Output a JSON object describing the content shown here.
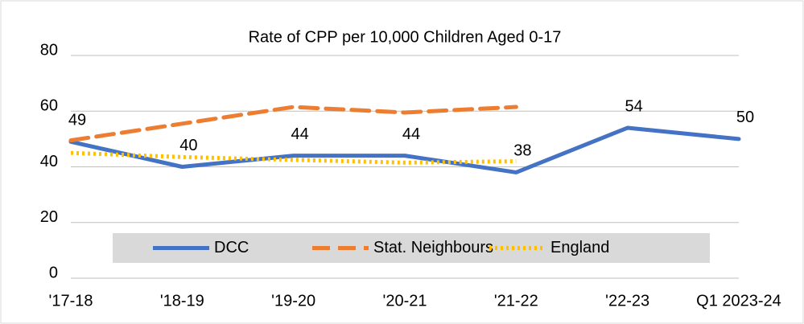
{
  "chart_data": {
    "type": "line",
    "title": "Rate of CPP per 10,000 Children Aged 0-17",
    "categories": [
      "'17-18",
      "'18-19",
      "'19-20",
      "'20-21",
      "'21-22",
      "'22-23",
      "Q1 2023-24"
    ],
    "series": [
      {
        "name": "DCC",
        "color": "#4472c4",
        "style": "solid",
        "values": [
          49,
          40,
          44,
          44,
          38,
          54,
          50
        ],
        "data_labels": true
      },
      {
        "name": "Stat. Neighbours",
        "color": "#ed7d31",
        "style": "dashed",
        "values": [
          49.5,
          55.5,
          61.5,
          59.5,
          61.5,
          null,
          null
        ]
      },
      {
        "name": "England",
        "color": "#ffc000",
        "style": "dotted",
        "values": [
          45,
          43.5,
          42.5,
          41.5,
          42,
          null,
          null
        ]
      }
    ],
    "ylim": [
      0,
      80
    ],
    "yticks": [
      0,
      20,
      40,
      60,
      80
    ],
    "grid": true,
    "legend": "bottom"
  }
}
